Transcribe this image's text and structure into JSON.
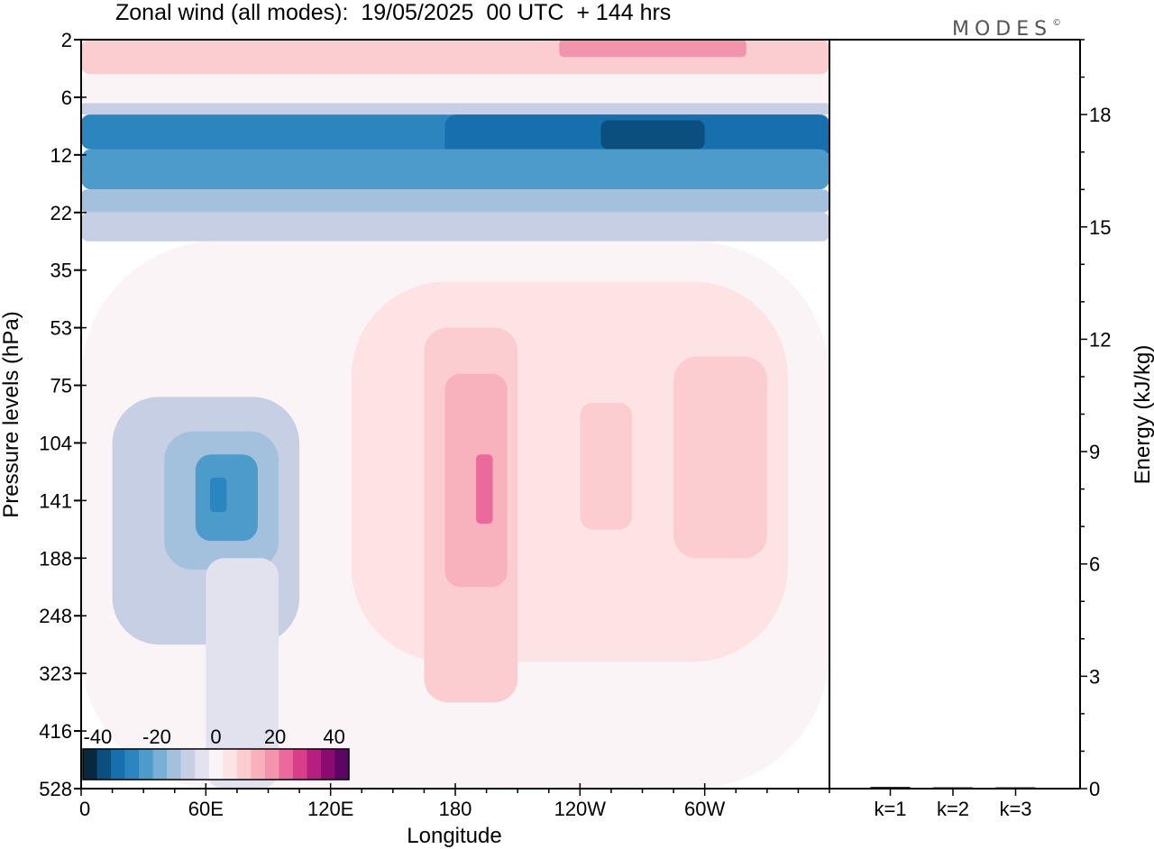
{
  "header": {
    "title": "Zonal wind (all modes):  19/05/2025  00 UTC  + 144 hrs",
    "logo": "MODES",
    "logo_mark": "©"
  },
  "chart_data": [
    {
      "type": "heatmap",
      "title": "Zonal wind (all modes):  19/05/2025  00 UTC  + 144 hrs",
      "xlabel": "Longitude",
      "ylabel": "Pressure levels (hPa)",
      "x_ticks": [
        "0",
        "60E",
        "120E",
        "180",
        "120W",
        "60W"
      ],
      "x_tick_values": [
        0,
        60,
        120,
        180,
        240,
        300
      ],
      "xlim": [
        0,
        360
      ],
      "y_ticks": [
        "2",
        "6",
        "12",
        "22",
        "35",
        "53",
        "75",
        "104",
        "141",
        "188",
        "248",
        "323",
        "416",
        "528"
      ],
      "y_scale": "pressure levels, top to bottom",
      "colorbar": {
        "tick_labels": [
          "-40",
          "-20",
          "0",
          "20",
          "40"
        ],
        "tick_values": [
          -40,
          -20,
          0,
          20,
          40
        ],
        "levels": [
          -45,
          -40,
          -35,
          -30,
          -25,
          -20,
          -15,
          -10,
          -5,
          0,
          5,
          10,
          15,
          20,
          25,
          30,
          35,
          40,
          45
        ],
        "colors": [
          "#08283f",
          "#0a4f7e",
          "#1570ad",
          "#2b86bf",
          "#4c9bcb",
          "#79b0d6",
          "#a3c1dd",
          "#c6cfe4",
          "#e2e2ef",
          "#faf4f6",
          "#fde3e3",
          "#fbcdd0",
          "#f8b2bd",
          "#f394ac",
          "#ea6b9b",
          "#d93e8b",
          "#b71f7e",
          "#8a0c72",
          "#5c0565"
        ]
      },
      "regions": [
        {
          "lon": [
            0,
            360
          ],
          "level": [
            0.0,
            0.6
          ],
          "value": 12
        },
        {
          "lon": [
            230,
            320
          ],
          "level": [
            0.0,
            0.3
          ],
          "value": 24
        },
        {
          "lon": [
            0,
            360
          ],
          "level": [
            0.6,
            1.1
          ],
          "value": 3
        },
        {
          "lon": [
            0,
            360
          ],
          "level": [
            1.1,
            1.3
          ],
          "value": -8
        },
        {
          "lon": [
            0,
            360
          ],
          "level": [
            1.3,
            1.9
          ],
          "value": -28
        },
        {
          "lon": [
            175,
            360
          ],
          "level": [
            1.3,
            2.1
          ],
          "value": -32
        },
        {
          "lon": [
            250,
            300
          ],
          "level": [
            1.4,
            1.9
          ],
          "value": -38
        },
        {
          "lon": [
            0,
            360
          ],
          "level": [
            1.9,
            2.6
          ],
          "value": -22
        },
        {
          "lon": [
            0,
            360
          ],
          "level": [
            2.6,
            3.0
          ],
          "value": -14
        },
        {
          "lon": [
            0,
            360
          ],
          "level": [
            3.0,
            3.5
          ],
          "value": -7
        },
        {
          "lon": [
            0,
            360
          ],
          "level": [
            3.5,
            13.0
          ],
          "value": 2
        },
        {
          "lon": [
            130,
            340
          ],
          "level": [
            4.2,
            10.8
          ],
          "value": 7
        },
        {
          "lon": [
            165,
            210
          ],
          "level": [
            5.0,
            11.5
          ],
          "value": 12
        },
        {
          "lon": [
            175,
            205
          ],
          "level": [
            5.8,
            9.5
          ],
          "value": 18
        },
        {
          "lon": [
            190,
            198
          ],
          "level": [
            7.2,
            8.4
          ],
          "value": 25
        },
        {
          "lon": [
            240,
            265
          ],
          "level": [
            6.3,
            8.5
          ],
          "value": 11
        },
        {
          "lon": [
            285,
            330
          ],
          "level": [
            5.5,
            9.0
          ],
          "value": 12
        },
        {
          "lon": [
            15,
            105
          ],
          "level": [
            6.2,
            10.5
          ],
          "value": -7
        },
        {
          "lon": [
            40,
            95
          ],
          "level": [
            6.8,
            9.2
          ],
          "value": -14
        },
        {
          "lon": [
            55,
            85
          ],
          "level": [
            7.2,
            8.7
          ],
          "value": -22
        },
        {
          "lon": [
            62,
            70
          ],
          "level": [
            7.6,
            8.2
          ],
          "value": -27
        },
        {
          "lon": [
            60,
            95
          ],
          "level": [
            9.0,
            13.0
          ],
          "value": -5
        }
      ]
    },
    {
      "type": "bar",
      "categories": [
        "k=1",
        "k=2",
        "k=3"
      ],
      "values": [
        0.02,
        0.01,
        0.01
      ],
      "ylabel": "Energy (kJ/kg)",
      "y_ticks": [
        0,
        3,
        6,
        9,
        12,
        15,
        18
      ],
      "ylim": [
        0,
        20
      ]
    }
  ]
}
